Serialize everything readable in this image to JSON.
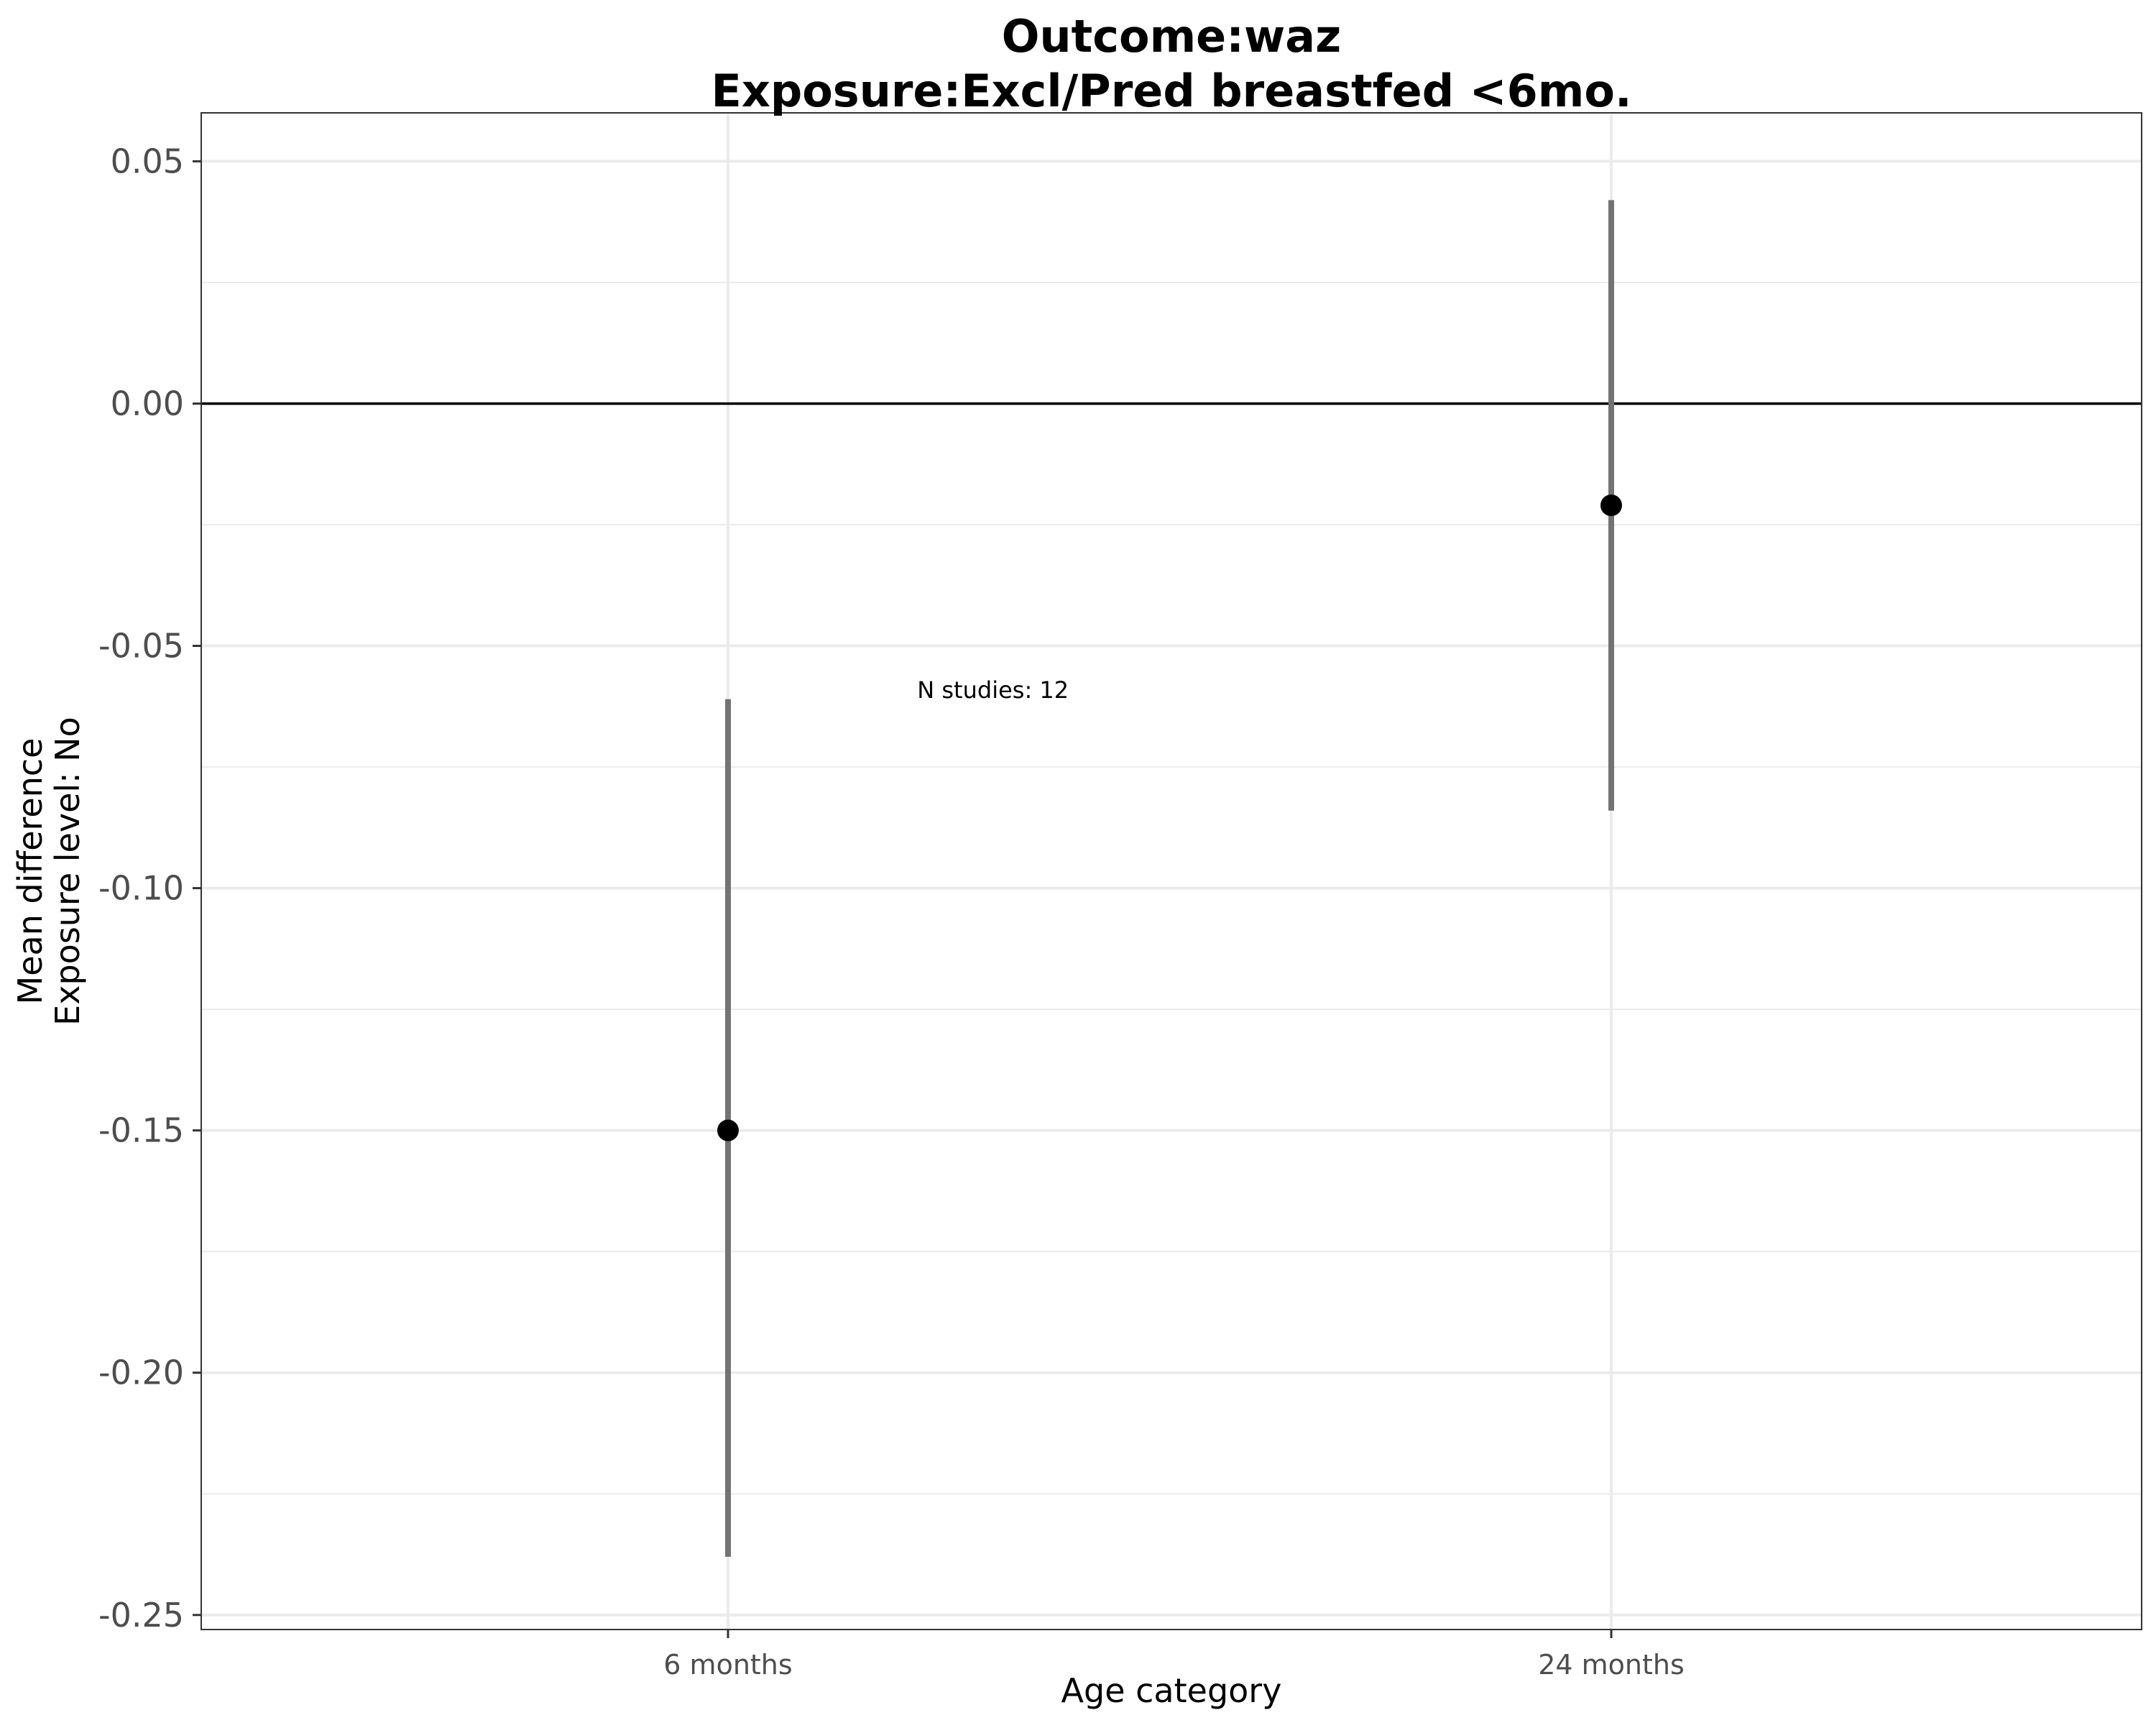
{
  "chart_data": {
    "type": "scatter",
    "title": "Outcome:waz",
    "subtitle": "Exposure:Excl/Pred breastfed <6mo.",
    "xlabel": "Age category",
    "ylabel": [
      "Mean difference",
      "Exposure level: No"
    ],
    "categories": [
      "6 months",
      "24 months"
    ],
    "points": [
      {
        "x": "6 months",
        "y": -0.15,
        "lower": -0.238,
        "upper": -0.061
      },
      {
        "x": "24 months",
        "y": -0.021,
        "lower": -0.084,
        "upper": 0.042
      }
    ],
    "ylim": [
      -0.253,
      0.06
    ],
    "yticks": [
      -0.25,
      -0.2,
      -0.15,
      -0.1,
      -0.05,
      0.0,
      0.05
    ],
    "ytick_labels": [
      "-0.25",
      "-0.20",
      "-0.15",
      "-0.10",
      "-0.05",
      "0.00",
      "0.05"
    ],
    "minor_yticks": [
      -0.225,
      -0.175,
      -0.125,
      -0.075,
      -0.025,
      0.025
    ],
    "reference_line": 0,
    "annotation": {
      "text": "N studies: 12",
      "x_between": [
        "6 months",
        "24 months"
      ],
      "x_fraction": 0.3,
      "y": -0.059
    },
    "grid": true,
    "colors": {
      "point": "#000000",
      "errorbar": "#737373",
      "grid": "#ebebeb",
      "refline": "#000000",
      "text": "#4d4d4d"
    }
  }
}
